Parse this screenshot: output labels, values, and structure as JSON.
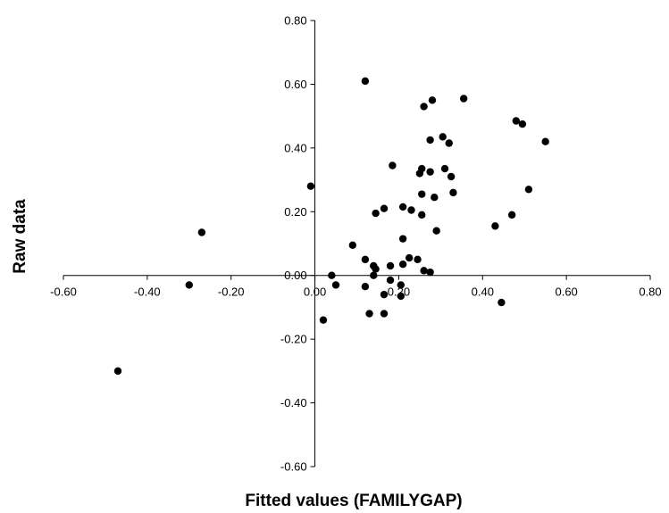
{
  "chart_data": {
    "type": "scatter",
    "title": "",
    "xlabel": "Fitted values (FAMILYGAP)",
    "ylabel": "Raw data",
    "xlim": [
      -0.6,
      0.8
    ],
    "ylim": [
      -0.6,
      0.8
    ],
    "xticks": [
      -0.6,
      -0.4,
      -0.2,
      0.0,
      0.2,
      0.4,
      0.6,
      0.8
    ],
    "yticks": [
      -0.6,
      -0.4,
      -0.2,
      0.0,
      0.2,
      0.4,
      0.6,
      0.8
    ],
    "xtick_labels": [
      "-0.60",
      "-0.40",
      "-0.20",
      "0.00",
      "0.20",
      "0.40",
      "0.60",
      "0.80"
    ],
    "ytick_labels": [
      "-0.60",
      "-0.40",
      "-0.20",
      "0.00",
      "0.20",
      "0.40",
      "0.60",
      "0.80"
    ],
    "grid": false,
    "legend": "none",
    "marker_color": "#000000",
    "points": [
      {
        "x": -0.47,
        "y": -0.3
      },
      {
        "x": -0.3,
        "y": -0.03
      },
      {
        "x": -0.27,
        "y": 0.135
      },
      {
        "x": -0.01,
        "y": 0.28
      },
      {
        "x": 0.02,
        "y": -0.14
      },
      {
        "x": 0.04,
        "y": 0.0
      },
      {
        "x": 0.05,
        "y": -0.03
      },
      {
        "x": 0.09,
        "y": 0.095
      },
      {
        "x": 0.12,
        "y": 0.61
      },
      {
        "x": 0.12,
        "y": 0.05
      },
      {
        "x": 0.12,
        "y": -0.035
      },
      {
        "x": 0.13,
        "y": -0.12
      },
      {
        "x": 0.14,
        "y": 0.03
      },
      {
        "x": 0.14,
        "y": 0.0
      },
      {
        "x": 0.145,
        "y": 0.195
      },
      {
        "x": 0.145,
        "y": 0.02
      },
      {
        "x": 0.165,
        "y": 0.21
      },
      {
        "x": 0.165,
        "y": -0.06
      },
      {
        "x": 0.165,
        "y": -0.12
      },
      {
        "x": 0.18,
        "y": 0.03
      },
      {
        "x": 0.18,
        "y": -0.015
      },
      {
        "x": 0.185,
        "y": 0.345
      },
      {
        "x": 0.205,
        "y": -0.03
      },
      {
        "x": 0.205,
        "y": -0.065
      },
      {
        "x": 0.21,
        "y": 0.215
      },
      {
        "x": 0.21,
        "y": 0.115
      },
      {
        "x": 0.21,
        "y": 0.035
      },
      {
        "x": 0.225,
        "y": 0.055
      },
      {
        "x": 0.23,
        "y": 0.205
      },
      {
        "x": 0.245,
        "y": 0.05
      },
      {
        "x": 0.25,
        "y": 0.32
      },
      {
        "x": 0.255,
        "y": 0.19
      },
      {
        "x": 0.255,
        "y": 0.255
      },
      {
        "x": 0.255,
        "y": 0.335
      },
      {
        "x": 0.26,
        "y": 0.53
      },
      {
        "x": 0.26,
        "y": 0.015
      },
      {
        "x": 0.275,
        "y": 0.325
      },
      {
        "x": 0.275,
        "y": 0.425
      },
      {
        "x": 0.275,
        "y": 0.01
      },
      {
        "x": 0.28,
        "y": 0.55
      },
      {
        "x": 0.285,
        "y": 0.245
      },
      {
        "x": 0.29,
        "y": 0.14
      },
      {
        "x": 0.305,
        "y": 0.435
      },
      {
        "x": 0.31,
        "y": 0.335
      },
      {
        "x": 0.32,
        "y": 0.415
      },
      {
        "x": 0.325,
        "y": 0.31
      },
      {
        "x": 0.33,
        "y": 0.26
      },
      {
        "x": 0.355,
        "y": 0.555
      },
      {
        "x": 0.43,
        "y": 0.155
      },
      {
        "x": 0.445,
        "y": -0.085
      },
      {
        "x": 0.47,
        "y": 0.19
      },
      {
        "x": 0.48,
        "y": 0.485
      },
      {
        "x": 0.495,
        "y": 0.475
      },
      {
        "x": 0.51,
        "y": 0.27
      },
      {
        "x": 0.55,
        "y": 0.42
      }
    ]
  }
}
